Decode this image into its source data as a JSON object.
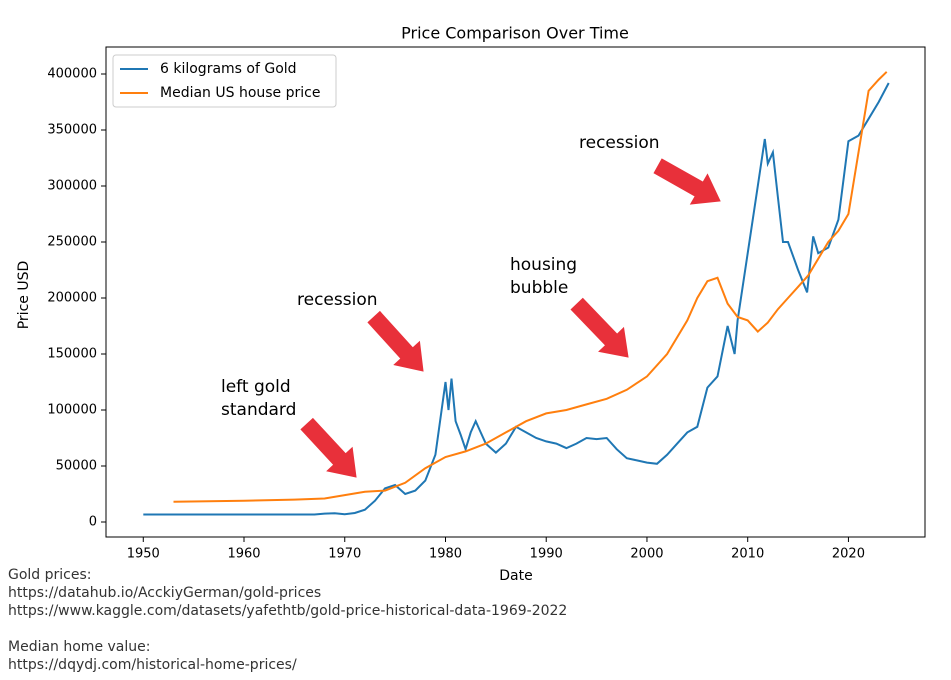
{
  "chart_data": {
    "type": "line",
    "title": "Price Comparison Over Time",
    "xlabel": "Date",
    "ylabel": "Price USD",
    "xlim": [
      1946.3,
      2027.6
    ],
    "ylim": [
      -13400,
      424100
    ],
    "xticks": [
      1950,
      1960,
      1970,
      1980,
      1990,
      2000,
      2010,
      2020
    ],
    "yticks": [
      0,
      50000,
      100000,
      150000,
      200000,
      250000,
      300000,
      350000,
      400000
    ],
    "legend": "upper left",
    "series": [
      {
        "name": "6 kilograms of Gold",
        "color": "#1f77b4",
        "x": [
          1950,
          1955,
          1960,
          1965,
          1967,
          1968,
          1969,
          1970,
          1971,
          1972,
          1973,
          1974,
          1975,
          1976,
          1977,
          1978,
          1979,
          1980,
          1980.3,
          1980.6,
          1981,
          1981.5,
          1982,
          1982.5,
          1983,
          1983.5,
          1984,
          1985,
          1986,
          1987,
          1988,
          1989,
          1990,
          1991,
          1992,
          1993,
          1994,
          1995,
          1996,
          1997,
          1998,
          1999,
          2000,
          2001,
          2002,
          2003,
          2004,
          2005,
          2006,
          2007,
          2008,
          2008.7,
          2009,
          2010,
          2011,
          2011.7,
          2012,
          2012.5,
          2013,
          2013.5,
          2014,
          2015,
          2015.9,
          2016.5,
          2017,
          2018,
          2019,
          2020,
          2021,
          2022,
          2023,
          2024
        ],
        "values": [
          6700,
          6700,
          6700,
          6700,
          6700,
          7500,
          7800,
          7000,
          8000,
          11000,
          19000,
          30000,
          33000,
          25000,
          28000,
          37000,
          60000,
          125000,
          100000,
          128000,
          90000,
          78000,
          65000,
          80000,
          90000,
          80000,
          70000,
          62000,
          70000,
          85000,
          80000,
          75000,
          72000,
          70000,
          66000,
          70000,
          75000,
          74000,
          75000,
          65000,
          57000,
          55000,
          53000,
          52000,
          60000,
          70000,
          80000,
          85000,
          120000,
          130000,
          175000,
          150000,
          180000,
          240000,
          300000,
          342000,
          320000,
          330000,
          290000,
          250000,
          250000,
          225000,
          205000,
          255000,
          240000,
          245000,
          270000,
          340000,
          345000,
          360000,
          375000,
          392000
        ]
      },
      {
        "name": "Median US house price",
        "color": "#ff7f0e",
        "x": [
          1953,
          1960,
          1965,
          1968,
          1970,
          1972,
          1974,
          1976,
          1978,
          1980,
          1982,
          1984,
          1986,
          1988,
          1990,
          1992,
          1994,
          1996,
          1998,
          2000,
          2002,
          2004,
          2005,
          2006,
          2007,
          2008,
          2009,
          2010,
          2011,
          2012,
          2013,
          2014,
          2015,
          2016,
          2017,
          2018,
          2019,
          2020,
          2021,
          2022,
          2023,
          2023.8
        ],
        "values": [
          18000,
          19000,
          20000,
          21000,
          24000,
          27000,
          28000,
          35000,
          48000,
          58000,
          63000,
          70000,
          80000,
          90000,
          97000,
          100000,
          105000,
          110000,
          118000,
          130000,
          150000,
          180000,
          200000,
          215000,
          218000,
          195000,
          183000,
          180000,
          170000,
          178000,
          190000,
          200000,
          210000,
          220000,
          235000,
          250000,
          260000,
          275000,
          330000,
          385000,
          395000,
          402000
        ]
      }
    ],
    "annotations": [
      {
        "lines": [
          "left gold",
          "standard"
        ]
      },
      {
        "lines": [
          "recession"
        ]
      },
      {
        "lines": [
          "housing",
          "bubble"
        ]
      },
      {
        "lines": [
          "recession"
        ]
      }
    ]
  },
  "footnotes": [
    {
      "lines": [
        "Gold prices:",
        "https://datahub.io/AcckiyGerman/gold-prices",
        "https://www.kaggle.com/datasets/yafethtb/gold-price-historical-data-1969-2022"
      ]
    },
    {
      "lines": [
        "Median home value:",
        "https://dqydj.com/historical-home-prices/"
      ]
    }
  ]
}
